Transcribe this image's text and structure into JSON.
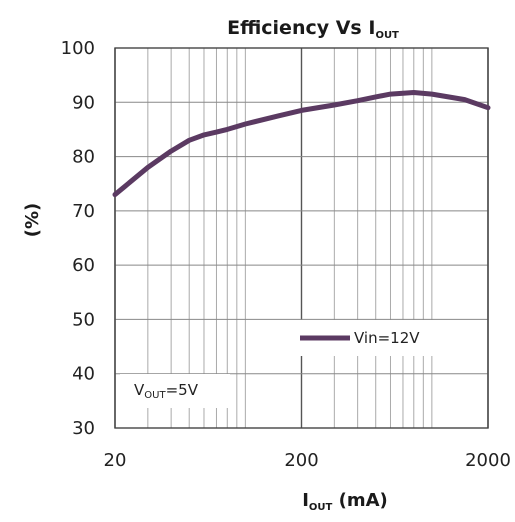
{
  "chart_data": {
    "type": "line",
    "title": "Efficiency Vs I",
    "title_subscript": "OUT",
    "xlabel": "I",
    "xlabel_subscript": "OUT",
    "xlabel_unit": "(mA)",
    "ylabel": "(%)",
    "x_scale": "log",
    "xlim": [
      20,
      2000
    ],
    "ylim": [
      30,
      100
    ],
    "x_ticks": [
      20,
      200,
      2000
    ],
    "x_tick_labels": [
      "20",
      "200",
      "2000"
    ],
    "y_ticks": [
      30,
      40,
      50,
      60,
      70,
      80,
      90,
      100
    ],
    "y_tick_labels": [
      "30",
      "40",
      "50",
      "60",
      "70",
      "80",
      "90",
      "100"
    ],
    "grid": true,
    "series": [
      {
        "name": "Vin=12V",
        "color": "#5b3a62",
        "x": [
          20,
          30,
          40,
          50,
          60,
          70,
          80,
          100,
          150,
          200,
          300,
          400,
          500,
          600,
          800,
          1000,
          1500,
          2000
        ],
        "y": [
          73,
          78,
          81,
          83,
          84,
          84.5,
          85,
          86,
          87.5,
          88.5,
          89.5,
          90.3,
          91,
          91.5,
          91.8,
          91.5,
          90.5,
          89
        ]
      }
    ],
    "legend": {
      "position": "middle-right"
    },
    "annotation": {
      "text": "V",
      "subscript": "OUT",
      "suffix": "=5V",
      "position": "bottom-left"
    }
  }
}
